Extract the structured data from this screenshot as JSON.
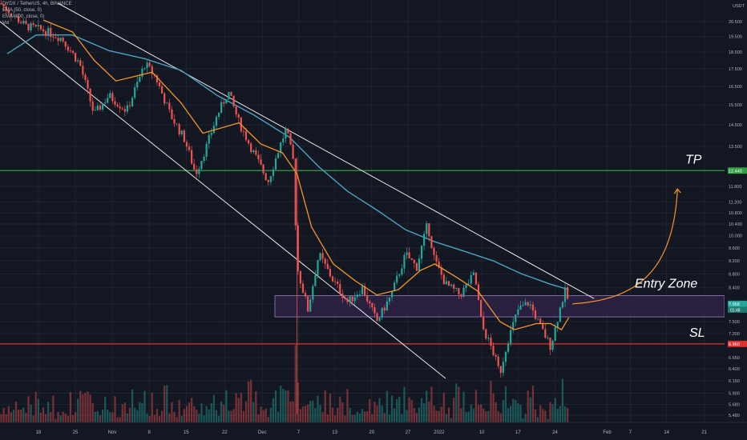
{
  "legend": {
    "symbol_line": "DYDX / TetherUS, 4h, BINANCE",
    "ema50": "EMA (50, close, 0)",
    "ema200": "EMA (200, close, 0)",
    "vol": "Vol"
  },
  "currency": "USDT",
  "colors": {
    "background": "#131722",
    "grid": "#1f2433",
    "up": "#26a69a",
    "down": "#ef5350",
    "ema50": "#f5952b",
    "ema200": "#4aa3c0",
    "channel": "#e8e8e8",
    "tp_line": "#2e9e40",
    "sl_line": "#e0302d",
    "zone_fill": "#2e2244",
    "zone_border": "#9a7fc0",
    "arrow": "#f5952b",
    "axis_text": "#b2b5be"
  },
  "chart_data": {
    "type": "candlestick",
    "scale": "log",
    "y_ticks": [
      "20.500",
      "19.500",
      "18.500",
      "17.500",
      "16.500",
      "15.500",
      "14.500",
      "13.500",
      "12.440",
      "11.800",
      "11.200",
      "10.800",
      "10.400",
      "10.000",
      "9.600",
      "9.200",
      "8.800",
      "8.400",
      "7.958",
      "7.500",
      "7.200",
      "6.960",
      "6.650",
      "6.400",
      "6.150",
      "5.900",
      "5.680",
      "5.480"
    ],
    "x_ticks": [
      "18",
      "25",
      "Nov",
      "8",
      "15",
      "22",
      "Dec",
      "7",
      "13",
      "20",
      "27",
      "2022",
      "10",
      "17",
      "24",
      "Feb",
      "7",
      "14",
      "21"
    ],
    "ylim": [
      5.35,
      21.8
    ],
    "levels": {
      "tp": {
        "value": 12.44,
        "label": "12.440",
        "annotation": "TP"
      },
      "sl": {
        "value": 6.96,
        "label": "6.960",
        "annotation": "SL"
      },
      "entry_zone": {
        "low": 7.62,
        "high": 8.18,
        "label": "Entry Zone"
      },
      "current_price": {
        "value": 7.958,
        "label": "7.958",
        "countdown": "01:48"
      }
    },
    "price_path": [
      [
        0.0,
        21.8
      ],
      [
        0.035,
        20.2
      ],
      [
        0.06,
        19.9
      ],
      [
        0.085,
        19.4
      ],
      [
        0.11,
        17.8
      ],
      [
        0.13,
        15.0
      ],
      [
        0.15,
        16.0
      ],
      [
        0.175,
        15.2
      ],
      [
        0.2,
        17.8
      ],
      [
        0.215,
        17.0
      ],
      [
        0.235,
        15.0
      ],
      [
        0.255,
        13.8
      ],
      [
        0.27,
        12.3
      ],
      [
        0.285,
        13.5
      ],
      [
        0.3,
        15.0
      ],
      [
        0.315,
        16.2
      ],
      [
        0.33,
        14.6
      ],
      [
        0.35,
        13.2
      ],
      [
        0.37,
        12.0
      ],
      [
        0.385,
        13.4
      ],
      [
        0.395,
        14.3
      ],
      [
        0.405,
        12.8
      ],
      [
        0.41,
        9.0
      ],
      [
        0.425,
        7.8
      ],
      [
        0.44,
        9.4
      ],
      [
        0.46,
        8.6
      ],
      [
        0.48,
        8.0
      ],
      [
        0.5,
        8.4
      ],
      [
        0.52,
        7.5
      ],
      [
        0.54,
        8.2
      ],
      [
        0.56,
        9.4
      ],
      [
        0.575,
        9.0
      ],
      [
        0.59,
        10.4
      ],
      [
        0.6,
        9.2
      ],
      [
        0.615,
        8.5
      ],
      [
        0.635,
        8.2
      ],
      [
        0.655,
        8.8
      ],
      [
        0.665,
        7.4
      ],
      [
        0.68,
        6.8
      ],
      [
        0.69,
        6.3
      ],
      [
        0.7,
        7.0
      ],
      [
        0.715,
        7.8
      ],
      [
        0.73,
        8.0
      ],
      [
        0.745,
        7.4
      ],
      [
        0.76,
        6.9
      ],
      [
        0.775,
        8.0
      ],
      [
        0.78,
        8.3
      ],
      [
        0.785,
        8.0
      ]
    ],
    "ema50_path": [
      [
        0.06,
        20.6
      ],
      [
        0.1,
        19.8
      ],
      [
        0.13,
        18.0
      ],
      [
        0.16,
        16.8
      ],
      [
        0.21,
        17.3
      ],
      [
        0.25,
        15.6
      ],
      [
        0.28,
        14.1
      ],
      [
        0.31,
        14.4
      ],
      [
        0.33,
        14.6
      ],
      [
        0.36,
        13.6
      ],
      [
        0.39,
        13.2
      ],
      [
        0.41,
        12.3
      ],
      [
        0.43,
        10.3
      ],
      [
        0.46,
        9.1
      ],
      [
        0.49,
        8.6
      ],
      [
        0.52,
        8.2
      ],
      [
        0.55,
        8.35
      ],
      [
        0.58,
        8.9
      ],
      [
        0.6,
        9.1
      ],
      [
        0.63,
        8.7
      ],
      [
        0.66,
        8.3
      ],
      [
        0.69,
        7.5
      ],
      [
        0.71,
        7.3
      ],
      [
        0.74,
        7.45
      ],
      [
        0.76,
        7.45
      ],
      [
        0.775,
        7.3
      ],
      [
        0.785,
        7.6
      ]
    ],
    "ema200_path": [
      [
        0.01,
        18.4
      ],
      [
        0.05,
        19.6
      ],
      [
        0.1,
        19.6
      ],
      [
        0.15,
        18.6
      ],
      [
        0.2,
        18.1
      ],
      [
        0.25,
        17.4
      ],
      [
        0.3,
        16.0
      ],
      [
        0.35,
        15.0
      ],
      [
        0.4,
        13.9
      ],
      [
        0.44,
        12.6
      ],
      [
        0.48,
        11.6
      ],
      [
        0.52,
        10.9
      ],
      [
        0.56,
        10.2
      ],
      [
        0.6,
        9.8
      ],
      [
        0.64,
        9.5
      ],
      [
        0.68,
        9.2
      ],
      [
        0.72,
        8.8
      ],
      [
        0.76,
        8.5
      ],
      [
        0.785,
        8.35
      ]
    ],
    "channel_upper": [
      [
        0.08,
        21.8
      ],
      [
        0.82,
        8.1
      ]
    ],
    "channel_lower": [
      [
        0.0,
        20.5
      ],
      [
        0.615,
        6.2
      ]
    ],
    "arrow": {
      "from": [
        0.79,
        7.96
      ],
      "to": [
        0.935,
        11.7
      ]
    }
  }
}
